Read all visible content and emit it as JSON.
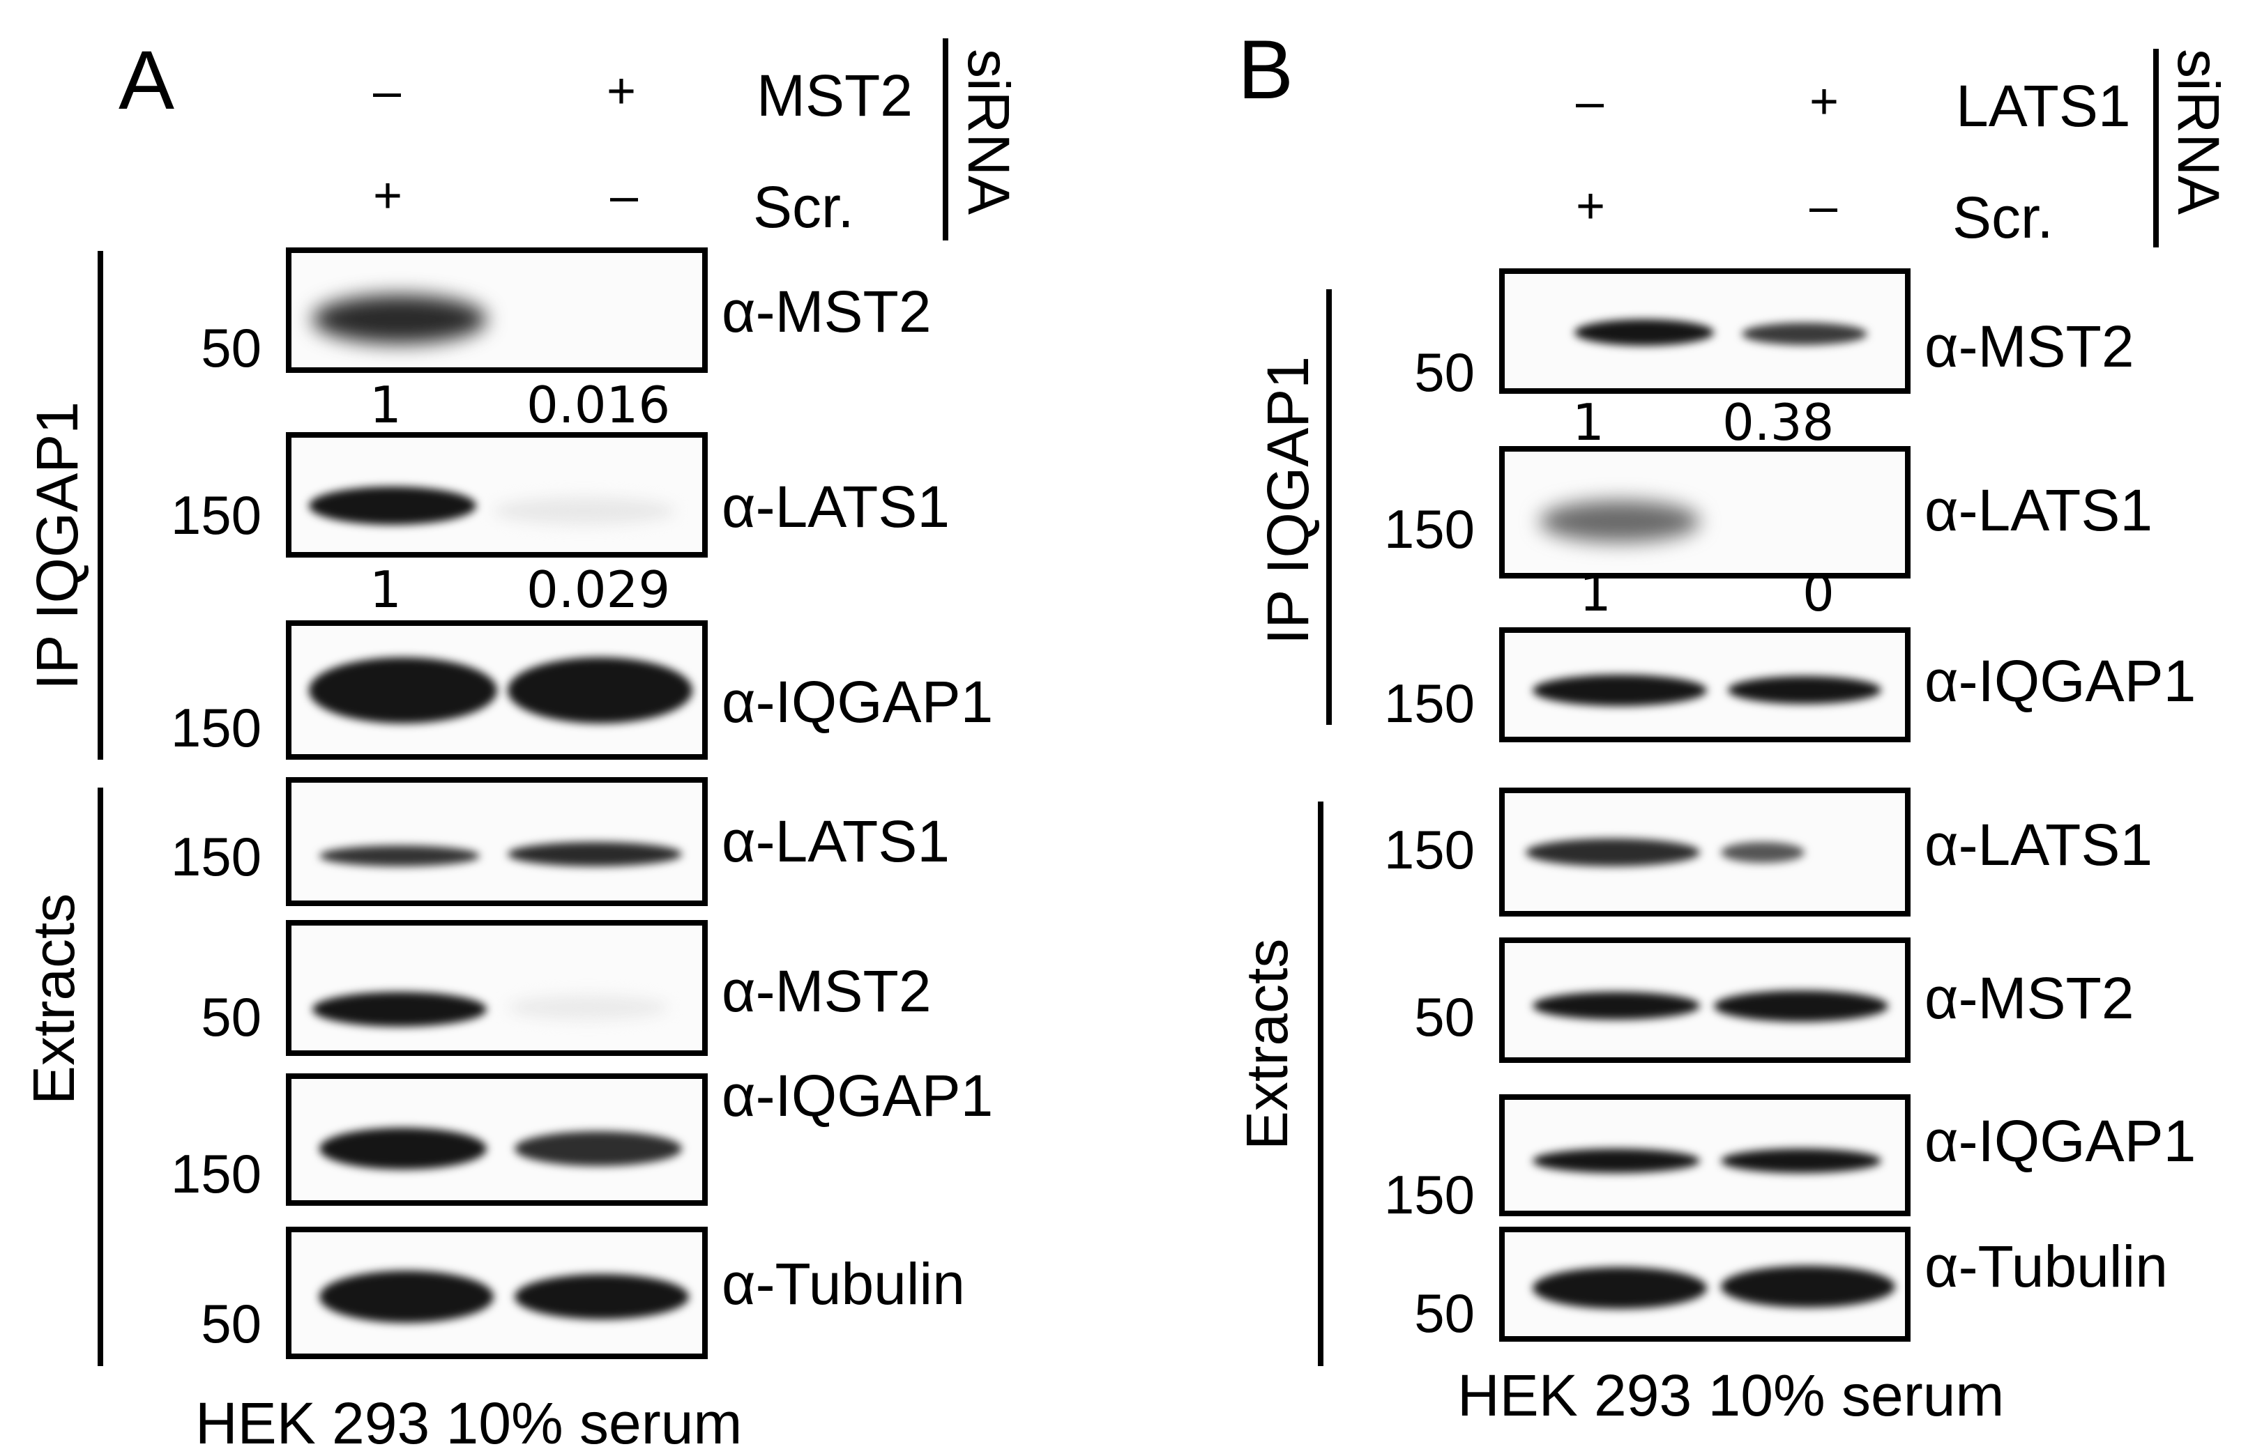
{
  "panels": [
    {
      "letter": "A",
      "top_row": {
        "lane1_sign": "–",
        "lane2_sign": "+",
        "label": "MST2"
      },
      "bottom_row": {
        "lane1_sign": "+",
        "lane2_sign": "–",
        "label": "Scr."
      },
      "treatment_label": "siRNA",
      "ip_label": "IP IQGAP1",
      "extract_label": "Extracts",
      "blots": [
        {
          "mw": "50",
          "antibody": "α-MST2",
          "quant": [
            "1",
            "0.016"
          ],
          "intensity": [
            0.75,
            0.0
          ]
        },
        {
          "mw": "150",
          "antibody": "α-LATS1",
          "quant": [
            "1",
            "0.029"
          ],
          "intensity": [
            1.0,
            0.06
          ]
        },
        {
          "mw": "150",
          "antibody": "α-IQGAP1",
          "intensity": [
            1.0,
            1.0
          ]
        },
        {
          "mw": "150",
          "antibody": "α-LATS1",
          "intensity": [
            0.55,
            0.6
          ]
        },
        {
          "mw": "50",
          "antibody": "α-MST2",
          "intensity": [
            0.9,
            0.08
          ]
        },
        {
          "mw": "150",
          "antibody": "α-IQGAP1",
          "intensity": [
            0.9,
            0.75
          ]
        },
        {
          "mw": "50",
          "antibody": "α-Tubulin",
          "intensity": [
            1.0,
            0.95
          ]
        }
      ],
      "footer": "HEK 293  10% serum"
    },
    {
      "letter": "B",
      "top_row": {
        "lane1_sign": "–",
        "lane2_sign": "+",
        "label": "LATS1"
      },
      "bottom_row": {
        "lane1_sign": "+",
        "lane2_sign": "–",
        "label": "Scr."
      },
      "treatment_label": "siRNA",
      "ip_label": "IP IQGAP1",
      "extract_label": "Extracts",
      "blots": [
        {
          "mw": "50",
          "antibody": "α-MST2",
          "quant": [
            "1",
            "0.38"
          ],
          "intensity": [
            0.85,
            0.45
          ]
        },
        {
          "mw": "150",
          "antibody": "α-LATS1",
          "quant": [
            "1",
            "0"
          ],
          "intensity": [
            0.35,
            0.0
          ]
        },
        {
          "mw": "150",
          "antibody": "α-IQGAP1",
          "intensity": [
            0.9,
            0.85
          ]
        },
        {
          "mw": "150",
          "antibody": "α-LATS1",
          "intensity": [
            0.7,
            0.35
          ]
        },
        {
          "mw": "50",
          "antibody": "α-MST2",
          "intensity": [
            0.85,
            0.9
          ]
        },
        {
          "mw": "150",
          "antibody": "α-IQGAP1",
          "intensity": [
            0.85,
            0.85
          ]
        },
        {
          "mw": "50",
          "antibody": "α-Tubulin",
          "intensity": [
            0.95,
            0.95
          ]
        }
      ],
      "footer": "HEK 293  10% serum"
    }
  ]
}
